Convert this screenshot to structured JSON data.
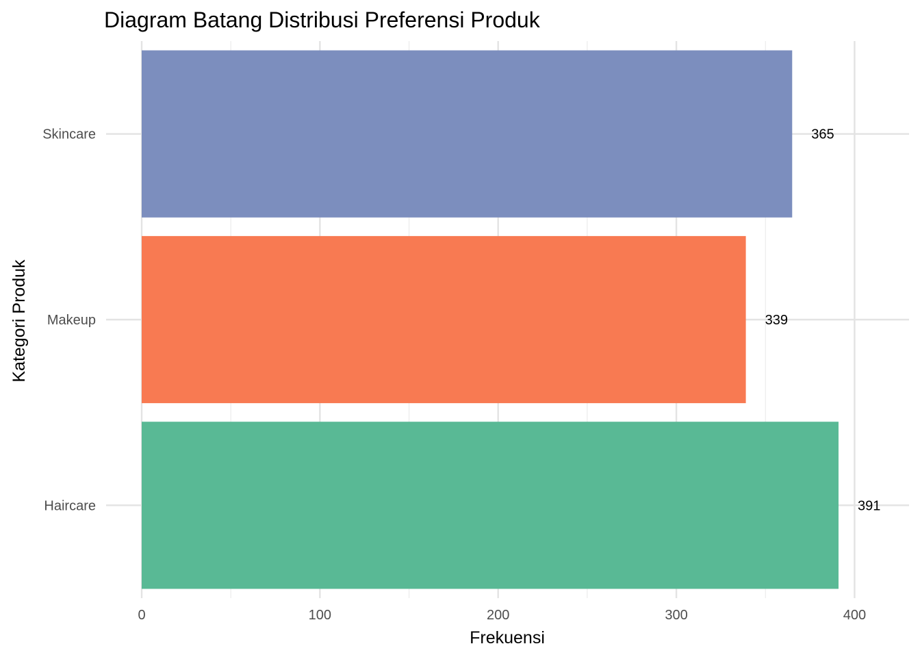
{
  "chart_data": {
    "type": "bar",
    "orientation": "horizontal",
    "title": "Diagram Batang Distribusi Preferensi Produk",
    "xlabel": "Frekuensi",
    "ylabel": "Kategori Produk",
    "categories": [
      "Haircare",
      "Makeup",
      "Skincare"
    ],
    "values": [
      391,
      339,
      365
    ],
    "data_labels": [
      "391",
      "339",
      "365"
    ],
    "colors": [
      "#59b995",
      "#f87a52",
      "#7c8ebe"
    ],
    "xlim": [
      0,
      420
    ],
    "x_ticks": [
      0,
      100,
      200,
      300,
      400
    ],
    "x_tick_labels": [
      "0",
      "100",
      "200",
      "300",
      "400"
    ],
    "grid": true,
    "legend": "none"
  }
}
